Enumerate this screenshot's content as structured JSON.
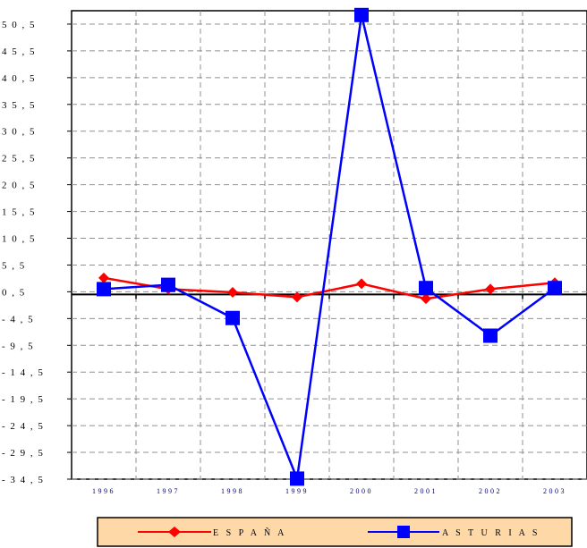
{
  "chart_data": {
    "type": "line",
    "categories": [
      "1996",
      "1997",
      "1998",
      "1999",
      "2000",
      "2001",
      "2002",
      "2003"
    ],
    "series": [
      {
        "name": "E S P A Ñ A",
        "color": "#ff0000",
        "marker": "diamond",
        "values": [
          3.1,
          1.0,
          0.4,
          -0.5,
          2.0,
          -0.8,
          1.0,
          2.2
        ]
      },
      {
        "name": "A S T U R I A S",
        "color": "#0000ff",
        "marker": "square",
        "values": [
          1.0,
          1.8,
          -4.4,
          -34.4,
          52.2,
          1.2,
          -7.7,
          1.2
        ]
      }
    ],
    "y_ticks": [
      "50,5",
      "45,5",
      "40,5",
      "35,5",
      "30,5",
      "25,5",
      "20,5",
      "15,5",
      "10,5",
      "5,5",
      "0,5",
      "-4,5",
      "-9,5",
      "-14,5",
      "-19,5",
      "-24,5",
      "-29,5",
      "-34,5"
    ],
    "ylim": [
      -34.5,
      53.0
    ],
    "grid": true,
    "legend_position": "bottom",
    "legend_background": "#ffd8a8"
  }
}
